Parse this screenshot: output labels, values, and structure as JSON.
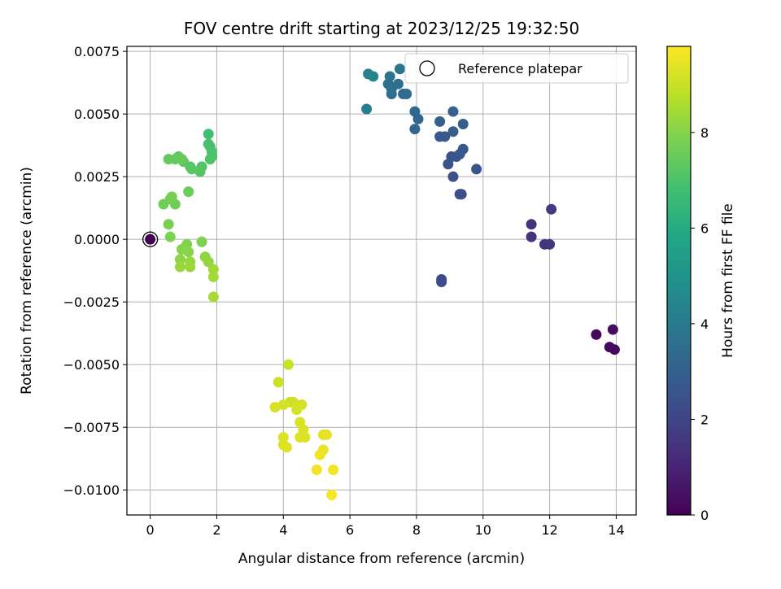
{
  "chart_data": {
    "type": "scatter",
    "title": "FOV centre drift starting at 2023/12/25 19:32:50",
    "xlabel": "Angular distance from reference (arcmin)",
    "ylabel": "Rotation from reference (arcmin)",
    "xlim": [
      -0.7,
      14.6
    ],
    "ylim": [
      -0.011,
      0.0077
    ],
    "xticks": [
      0,
      2,
      4,
      6,
      8,
      10,
      12,
      14
    ],
    "xtick_labels": [
      "0",
      "2",
      "4",
      "6",
      "8",
      "10",
      "12",
      "14"
    ],
    "yticks": [
      0.0075,
      0.005,
      0.0025,
      0.0,
      -0.0025,
      -0.005,
      -0.0075,
      -0.01
    ],
    "ytick_labels": [
      "0.0075",
      "0.0050",
      "0.0025",
      "0.0000",
      "−0.0025",
      "−0.0050",
      "−0.0075",
      "−0.0100"
    ],
    "grid": true,
    "legend": {
      "position": "top-right",
      "entries": [
        "Reference platepar"
      ]
    },
    "reference_point": {
      "x": 0,
      "y": 0
    },
    "colorbar": {
      "label": "Hours from first FF file",
      "range": [
        0,
        9.8
      ],
      "ticks": [
        0,
        2,
        4,
        6,
        8
      ],
      "tick_labels": [
        "0",
        "2",
        "4",
        "6",
        "8"
      ],
      "colormap": "viridis"
    },
    "points": [
      [
        13.4,
        -0.0038,
        0.2
      ],
      [
        13.8,
        -0.0043,
        0.25
      ],
      [
        13.95,
        -0.0044,
        0.3
      ],
      [
        13.9,
        -0.0036,
        0.35
      ],
      [
        11.45,
        0.0006,
        1.4
      ],
      [
        11.45,
        0.0001,
        1.45
      ],
      [
        11.85,
        -0.0002,
        1.5
      ],
      [
        12.0,
        -0.0002,
        1.55
      ],
      [
        12.05,
        0.0012,
        1.6
      ],
      [
        8.75,
        -0.0016,
        2.2
      ],
      [
        8.75,
        -0.0017,
        2.25
      ],
      [
        9.3,
        0.0018,
        2.3
      ],
      [
        9.35,
        0.0018,
        2.35
      ],
      [
        9.1,
        0.0025,
        2.4
      ],
      [
        9.8,
        0.0028,
        2.45
      ],
      [
        8.95,
        0.003,
        2.5
      ],
      [
        9.05,
        0.0033,
        2.55
      ],
      [
        9.2,
        0.0033,
        2.6
      ],
      [
        9.3,
        0.0034,
        2.65
      ],
      [
        9.4,
        0.0036,
        2.7
      ],
      [
        8.7,
        0.0041,
        2.75
      ],
      [
        8.85,
        0.0041,
        2.8
      ],
      [
        9.1,
        0.0043,
        2.85
      ],
      [
        9.4,
        0.0046,
        2.9
      ],
      [
        8.7,
        0.0047,
        2.95
      ],
      [
        9.1,
        0.0051,
        3.0
      ],
      [
        7.95,
        0.0044,
        3.2
      ],
      [
        8.05,
        0.0048,
        3.25
      ],
      [
        7.95,
        0.0051,
        3.3
      ],
      [
        7.6,
        0.0058,
        3.4
      ],
      [
        7.7,
        0.0058,
        3.45
      ],
      [
        7.25,
        0.0058,
        3.5
      ],
      [
        7.15,
        0.0062,
        3.55
      ],
      [
        7.25,
        0.006,
        3.6
      ],
      [
        7.45,
        0.0062,
        3.65
      ],
      [
        7.2,
        0.0065,
        3.7
      ],
      [
        7.5,
        0.0068,
        3.8
      ],
      [
        6.5,
        0.0052,
        4.1
      ],
      [
        6.55,
        0.0066,
        4.3
      ],
      [
        6.7,
        0.0065,
        4.4
      ],
      [
        1.75,
        0.0042,
        6.8
      ],
      [
        1.75,
        0.0038,
        6.85
      ],
      [
        1.8,
        0.0037,
        6.9
      ],
      [
        1.85,
        0.0035,
        6.95
      ],
      [
        1.85,
        0.0033,
        7.0
      ],
      [
        1.8,
        0.0032,
        7.05
      ],
      [
        1.55,
        0.0029,
        7.1
      ],
      [
        1.5,
        0.0027,
        7.15
      ],
      [
        1.2,
        0.0029,
        7.2
      ],
      [
        1.25,
        0.0028,
        7.25
      ],
      [
        1.0,
        0.0031,
        7.3
      ],
      [
        0.85,
        0.0033,
        7.35
      ],
      [
        0.75,
        0.0032,
        7.4
      ],
      [
        0.55,
        0.0032,
        7.45
      ],
      [
        0.95,
        0.0032,
        7.5
      ],
      [
        1.15,
        0.0019,
        7.55
      ],
      [
        0.75,
        0.0014,
        7.6
      ],
      [
        0.4,
        0.0014,
        7.65
      ],
      [
        0.6,
        0.0016,
        7.7
      ],
      [
        0.65,
        0.0017,
        7.75
      ],
      [
        0.55,
        0.0006,
        7.8
      ],
      [
        0.6,
        0.0001,
        7.85
      ],
      [
        1.55,
        -0.0001,
        7.9
      ],
      [
        1.1,
        -0.0002,
        7.95
      ],
      [
        0.95,
        -0.0004,
        8.0
      ],
      [
        1.15,
        -0.0005,
        8.05
      ],
      [
        0.9,
        -0.0008,
        8.1
      ],
      [
        1.65,
        -0.0007,
        8.15
      ],
      [
        1.75,
        -0.0009,
        8.2
      ],
      [
        1.2,
        -0.0009,
        8.25
      ],
      [
        0.9,
        -0.0011,
        8.3
      ],
      [
        1.2,
        -0.0011,
        8.35
      ],
      [
        1.9,
        -0.0012,
        8.4
      ],
      [
        1.9,
        -0.0015,
        8.45
      ],
      [
        1.9,
        -0.0023,
        8.5
      ],
      [
        4.15,
        -0.005,
        9.0
      ],
      [
        3.85,
        -0.0057,
        9.05
      ],
      [
        4.3,
        -0.0065,
        9.1
      ],
      [
        4.2,
        -0.0065,
        9.1
      ],
      [
        4.0,
        -0.0066,
        9.15
      ],
      [
        4.55,
        -0.0066,
        9.15
      ],
      [
        3.75,
        -0.0067,
        9.2
      ],
      [
        4.4,
        -0.0068,
        9.2
      ],
      [
        4.5,
        -0.0073,
        9.25
      ],
      [
        4.6,
        -0.0076,
        9.25
      ],
      [
        4.0,
        -0.0079,
        9.3
      ],
      [
        4.5,
        -0.0079,
        9.3
      ],
      [
        4.65,
        -0.0079,
        9.3
      ],
      [
        4.0,
        -0.0082,
        9.35
      ],
      [
        4.1,
        -0.0083,
        9.35
      ],
      [
        5.2,
        -0.0078,
        9.4
      ],
      [
        5.3,
        -0.0078,
        9.45
      ],
      [
        5.2,
        -0.0084,
        9.5
      ],
      [
        5.1,
        -0.0086,
        9.55
      ],
      [
        5.0,
        -0.0092,
        9.6
      ],
      [
        5.5,
        -0.0092,
        9.65
      ],
      [
        5.45,
        -0.0102,
        9.7
      ]
    ]
  }
}
